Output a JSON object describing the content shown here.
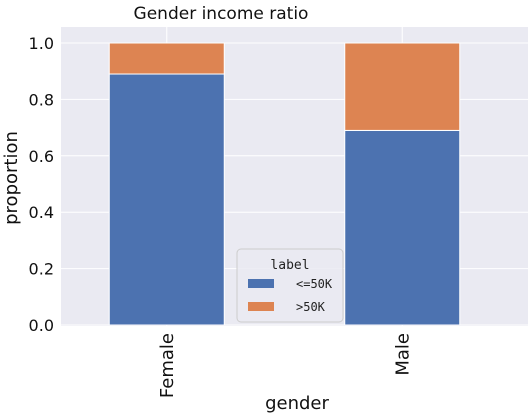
{
  "chart_data": {
    "type": "bar",
    "stacked": true,
    "title": "Gender income ratio",
    "xlabel": "gender",
    "ylabel": "proportion",
    "categories": [
      "Female",
      "Male"
    ],
    "series": [
      {
        "name": "<=50K",
        "values": [
          0.89,
          0.69
        ],
        "color": "#4c72b0"
      },
      {
        "name": ">50K",
        "values": [
          0.11,
          0.31
        ],
        "color": "#dd8452"
      }
    ],
    "ylim": [
      0,
      1.0
    ],
    "yticks": [
      "0.0",
      "0.2",
      "0.4",
      "0.6",
      "0.8",
      "1.0"
    ],
    "grid": true,
    "legend": {
      "title": "label",
      "placement": "bottom-center"
    },
    "background": "#eaeaf2"
  }
}
